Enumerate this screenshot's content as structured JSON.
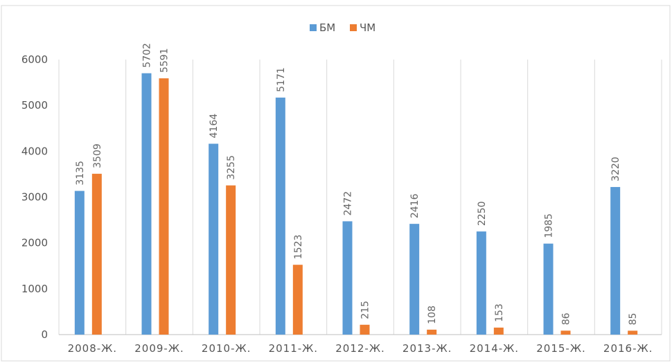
{
  "chart_data": {
    "type": "bar",
    "categories": [
      "2008-Ж.",
      "2009-Ж.",
      "2010-Ж.",
      "2011-Ж.",
      "2012-Ж.",
      "2013-Ж.",
      "2014-Ж.",
      "2015-Ж.",
      "2016-Ж."
    ],
    "series": [
      {
        "name": "БМ",
        "color": "#5b9bd5",
        "values": [
          3135,
          5702,
          4164,
          5171,
          2472,
          2416,
          2250,
          1985,
          3220
        ]
      },
      {
        "name": "ЧМ",
        "color": "#ed7d31",
        "values": [
          3509,
          5591,
          3255,
          1523,
          215,
          108,
          153,
          86,
          85
        ]
      }
    ],
    "ylim": [
      0,
      6000
    ],
    "yticks": [
      0,
      1000,
      2000,
      3000,
      4000,
      5000,
      6000
    ],
    "legend": "top",
    "data_labels": true
  }
}
